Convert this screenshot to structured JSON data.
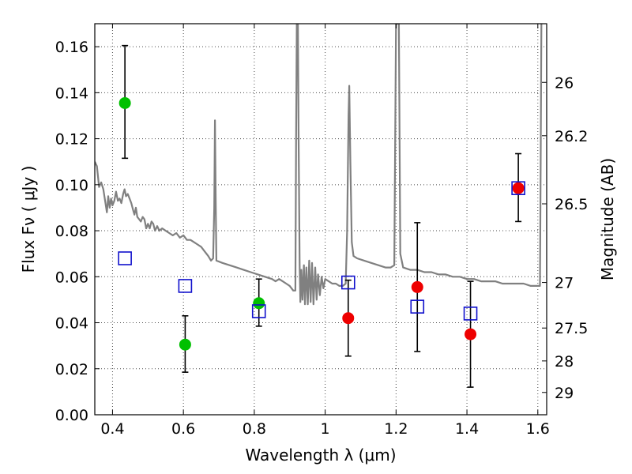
{
  "chart_data": {
    "type": "scatter",
    "title": "",
    "xlabel": "Wavelength  λ (μm)",
    "ylabel": "Flux  Fν  ( μJy )",
    "y2label": "Magnitude (AB)",
    "xlim": [
      0.35,
      1.625
    ],
    "ylim": [
      0.0,
      0.17
    ],
    "grid": true,
    "x_ticks": [
      0.4,
      0.6,
      0.8,
      1.0,
      1.2,
      1.4,
      1.6
    ],
    "x_tick_labels": [
      "0.4",
      "0.6",
      "0.8",
      "1",
      "1.2",
      "1.4",
      "1.6"
    ],
    "y_ticks": [
      0.0,
      0.02,
      0.04,
      0.06,
      0.08,
      0.1,
      0.12,
      0.14,
      0.16
    ],
    "y_tick_labels": [
      "0.00",
      "0.02",
      "0.04",
      "0.06",
      "0.08",
      "0.10",
      "0.12",
      "0.14",
      "0.16"
    ],
    "y2_ticks": [
      {
        "label": "26",
        "flux": 0.1445
      },
      {
        "label": "26.2",
        "flux": 0.1213
      },
      {
        "label": "26.5",
        "flux": 0.0917
      },
      {
        "label": "27",
        "flux": 0.0575
      },
      {
        "label": "27.5",
        "flux": 0.0377
      },
      {
        "label": "28",
        "flux": 0.0234
      },
      {
        "label": "29",
        "flux": 0.0097
      }
    ],
    "series": [
      {
        "color": "#00c000",
        "marker": "circle",
        "points": [
          {
            "x": 0.435,
            "y": 0.1355,
            "yerr_low": 0.1115,
            "yerr_high": 0.1605
          },
          {
            "x": 0.605,
            "y": 0.0305,
            "yerr_low": 0.0185,
            "yerr_high": 0.043
          },
          {
            "x": 0.813,
            "y": 0.0485,
            "yerr_low": 0.0385,
            "yerr_high": 0.059
          }
        ]
      },
      {
        "color": "#ee0000",
        "marker": "circle",
        "points": [
          {
            "x": 1.065,
            "y": 0.042,
            "yerr_low": 0.0255,
            "yerr_high": 0.0585
          },
          {
            "x": 1.26,
            "y": 0.0555,
            "yerr_low": 0.0275,
            "yerr_high": 0.0835
          },
          {
            "x": 1.41,
            "y": 0.035,
            "yerr_low": 0.012,
            "yerr_high": 0.058
          },
          {
            "x": 1.545,
            "y": 0.0985,
            "yerr_low": 0.084,
            "yerr_high": 0.1135
          }
        ]
      },
      {
        "color": "#1010cc",
        "marker": "open-square",
        "points": [
          {
            "x": 0.435,
            "y": 0.068
          },
          {
            "x": 0.605,
            "y": 0.056
          },
          {
            "x": 0.813,
            "y": 0.045
          },
          {
            "x": 1.065,
            "y": 0.0575
          },
          {
            "x": 1.26,
            "y": 0.047
          },
          {
            "x": 1.41,
            "y": 0.044
          },
          {
            "x": 1.545,
            "y": 0.0985
          }
        ]
      },
      {
        "color": "#808080",
        "marker": "line",
        "points": [
          [
            0.35,
            0.11
          ],
          [
            0.356,
            0.108
          ],
          [
            0.362,
            0.099
          ],
          [
            0.368,
            0.101
          ],
          [
            0.374,
            0.098
          ],
          [
            0.38,
            0.092
          ],
          [
            0.384,
            0.088
          ],
          [
            0.388,
            0.095
          ],
          [
            0.392,
            0.09
          ],
          [
            0.396,
            0.094
          ],
          [
            0.4,
            0.091
          ],
          [
            0.405,
            0.093
          ],
          [
            0.41,
            0.097
          ],
          [
            0.415,
            0.093
          ],
          [
            0.42,
            0.094
          ],
          [
            0.425,
            0.092
          ],
          [
            0.43,
            0.096
          ],
          [
            0.434,
            0.098
          ],
          [
            0.438,
            0.095
          ],
          [
            0.443,
            0.096
          ],
          [
            0.448,
            0.094
          ],
          [
            0.453,
            0.092
          ],
          [
            0.458,
            0.089
          ],
          [
            0.462,
            0.087
          ],
          [
            0.466,
            0.09
          ],
          [
            0.47,
            0.086
          ],
          [
            0.475,
            0.085
          ],
          [
            0.48,
            0.084
          ],
          [
            0.485,
            0.086
          ],
          [
            0.49,
            0.085
          ],
          [
            0.495,
            0.081
          ],
          [
            0.5,
            0.083
          ],
          [
            0.505,
            0.081
          ],
          [
            0.51,
            0.084
          ],
          [
            0.515,
            0.083
          ],
          [
            0.52,
            0.08
          ],
          [
            0.526,
            0.082
          ],
          [
            0.532,
            0.08
          ],
          [
            0.54,
            0.081
          ],
          [
            0.55,
            0.08
          ],
          [
            0.56,
            0.079
          ],
          [
            0.57,
            0.078
          ],
          [
            0.58,
            0.079
          ],
          [
            0.59,
            0.077
          ],
          [
            0.6,
            0.078
          ],
          [
            0.61,
            0.076
          ],
          [
            0.62,
            0.076
          ],
          [
            0.63,
            0.075
          ],
          [
            0.64,
            0.074
          ],
          [
            0.65,
            0.073
          ],
          [
            0.66,
            0.071
          ],
          [
            0.67,
            0.069
          ],
          [
            0.678,
            0.067
          ],
          [
            0.684,
            0.068
          ],
          [
            0.687,
            0.09
          ],
          [
            0.689,
            0.128
          ],
          [
            0.691,
            0.095
          ],
          [
            0.693,
            0.067
          ],
          [
            0.71,
            0.066
          ],
          [
            0.73,
            0.065
          ],
          [
            0.75,
            0.064
          ],
          [
            0.77,
            0.063
          ],
          [
            0.79,
            0.062
          ],
          [
            0.81,
            0.061
          ],
          [
            0.83,
            0.06
          ],
          [
            0.85,
            0.059
          ],
          [
            0.86,
            0.058
          ],
          [
            0.87,
            0.059
          ],
          [
            0.88,
            0.058
          ],
          [
            0.89,
            0.057
          ],
          [
            0.9,
            0.056
          ],
          [
            0.91,
            0.054
          ],
          [
            0.916,
            0.054
          ],
          [
            0.918,
            0.12
          ],
          [
            0.92,
            0.17
          ],
          [
            0.923,
            0.17
          ],
          [
            0.925,
            0.12
          ],
          [
            0.928,
            0.065
          ],
          [
            0.93,
            0.049
          ],
          [
            0.933,
            0.063
          ],
          [
            0.936,
            0.05
          ],
          [
            0.94,
            0.065
          ],
          [
            0.943,
            0.048
          ],
          [
            0.947,
            0.064
          ],
          [
            0.951,
            0.048
          ],
          [
            0.955,
            0.067
          ],
          [
            0.959,
            0.049
          ],
          [
            0.963,
            0.066
          ],
          [
            0.967,
            0.048
          ],
          [
            0.972,
            0.064
          ],
          [
            0.976,
            0.05
          ],
          [
            0.98,
            0.061
          ],
          [
            0.985,
            0.052
          ],
          [
            0.99,
            0.06
          ],
          [
            0.995,
            0.055
          ],
          [
            1.0,
            0.059
          ],
          [
            1.01,
            0.058
          ],
          [
            1.02,
            0.057
          ],
          [
            1.03,
            0.057
          ],
          [
            1.04,
            0.056
          ],
          [
            1.05,
            0.056
          ],
          [
            1.058,
            0.057
          ],
          [
            1.062,
            0.08
          ],
          [
            1.066,
            0.13
          ],
          [
            1.068,
            0.143
          ],
          [
            1.071,
            0.11
          ],
          [
            1.075,
            0.075
          ],
          [
            1.08,
            0.069
          ],
          [
            1.09,
            0.068
          ],
          [
            1.11,
            0.067
          ],
          [
            1.13,
            0.066
          ],
          [
            1.15,
            0.065
          ],
          [
            1.17,
            0.064
          ],
          [
            1.185,
            0.064
          ],
          [
            1.195,
            0.065
          ],
          [
            1.2,
            0.17
          ],
          [
            1.208,
            0.17
          ],
          [
            1.212,
            0.07
          ],
          [
            1.22,
            0.064
          ],
          [
            1.24,
            0.063
          ],
          [
            1.26,
            0.063
          ],
          [
            1.28,
            0.062
          ],
          [
            1.3,
            0.062
          ],
          [
            1.32,
            0.061
          ],
          [
            1.34,
            0.061
          ],
          [
            1.36,
            0.06
          ],
          [
            1.38,
            0.06
          ],
          [
            1.4,
            0.059
          ],
          [
            1.42,
            0.059
          ],
          [
            1.44,
            0.058
          ],
          [
            1.46,
            0.058
          ],
          [
            1.48,
            0.058
          ],
          [
            1.5,
            0.057
          ],
          [
            1.52,
            0.057
          ],
          [
            1.54,
            0.057
          ],
          [
            1.56,
            0.057
          ],
          [
            1.58,
            0.056
          ],
          [
            1.6,
            0.056
          ],
          [
            1.606,
            0.056
          ],
          [
            1.608,
            0.11
          ],
          [
            1.61,
            0.17
          ]
        ]
      }
    ]
  }
}
